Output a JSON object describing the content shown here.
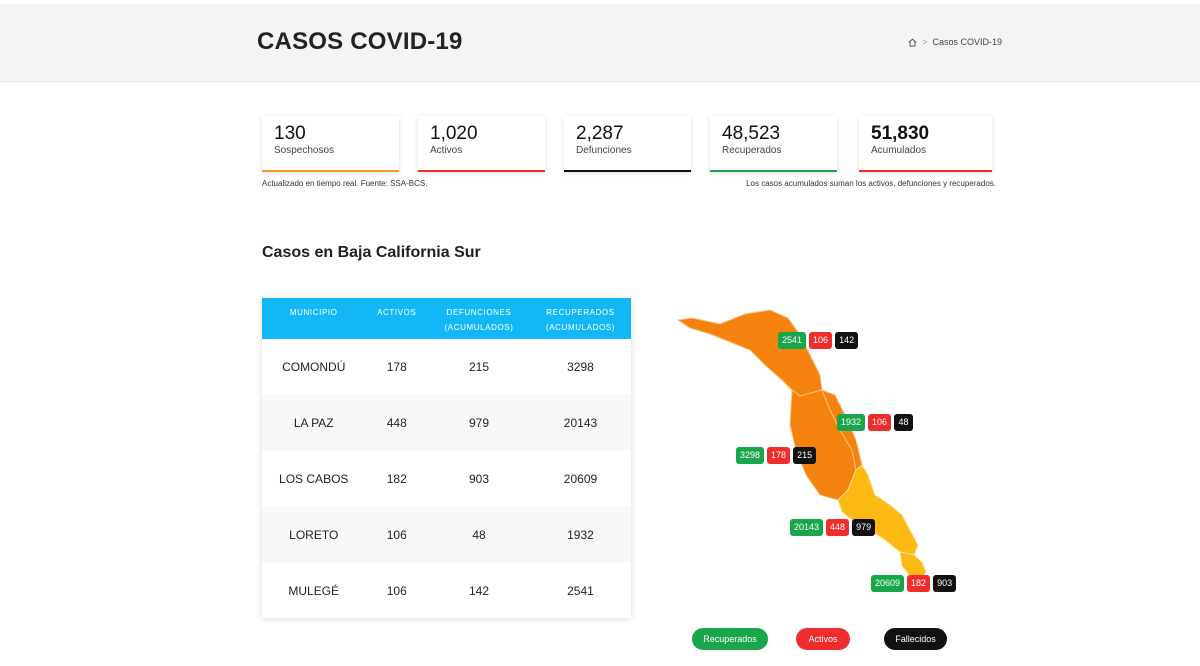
{
  "header": {
    "title": "CASOS COVID-19",
    "breadcrumb": {
      "current": "Casos COVID-19",
      "separator": ">"
    }
  },
  "stats": [
    {
      "value": "130",
      "label": "Sospechosos",
      "color": "#f39a2c"
    },
    {
      "value": "1,020",
      "label": "Activos",
      "color": "#ef2d2d"
    },
    {
      "value": "2,287",
      "label": "Defunciones",
      "color": "#111111"
    },
    {
      "value": "48,523",
      "label": "Recuperados",
      "color": "#19a64b"
    },
    {
      "value": "51,830",
      "label": "Acumulados",
      "color": "#ef2d2d"
    }
  ],
  "notes": {
    "left": "Actualizado en tiempo real. Fuente: SSA-BCS.",
    "right": "Los casos acumulados suman los activos, defunciones y recuperados."
  },
  "section_title": "Casos en Baja California Sur",
  "table": {
    "headers": {
      "municipio": "MUNICIPIO",
      "activos": "ACTIVOS",
      "defunciones": "DEFUNCIONES",
      "defunciones_sub": "(ACUMULADOS)",
      "recuperados": "RECUPERADOS",
      "recuperados_sub": "(ACUMULADOS)"
    },
    "rows": [
      {
        "municipio": "COMONDÚ",
        "activos": "178",
        "defunciones": "215",
        "recuperados": "3298"
      },
      {
        "municipio": "LA PAZ",
        "activos": "448",
        "defunciones": "979",
        "recuperados": "20143"
      },
      {
        "municipio": "LOS CABOS",
        "activos": "182",
        "defunciones": "903",
        "recuperados": "20609"
      },
      {
        "municipio": "LORETO",
        "activos": "106",
        "defunciones": "48",
        "recuperados": "1932"
      },
      {
        "municipio": "MULEGÉ",
        "activos": "106",
        "defunciones": "142",
        "recuperados": "2541"
      }
    ]
  },
  "map": {
    "colors": {
      "orange": "#f5820f",
      "yellow": "#fdb913"
    },
    "badges": [
      {
        "municipio": "MULEGÉ",
        "recuperados": "2541",
        "activos": "106",
        "fallecidos": "142"
      },
      {
        "municipio": "LORETO",
        "recuperados": "1932",
        "activos": "106",
        "fallecidos": "48"
      },
      {
        "municipio": "COMONDÚ",
        "recuperados": "3298",
        "activos": "178",
        "fallecidos": "215"
      },
      {
        "municipio": "LA PAZ",
        "recuperados": "20143",
        "activos": "448",
        "fallecidos": "979"
      },
      {
        "municipio": "LOS CABOS",
        "recuperados": "20609",
        "activos": "182",
        "fallecidos": "903"
      }
    ]
  },
  "legend": {
    "recuperados": "Recuperados",
    "activos": "Activos",
    "fallecidos": "Fallecidos"
  }
}
